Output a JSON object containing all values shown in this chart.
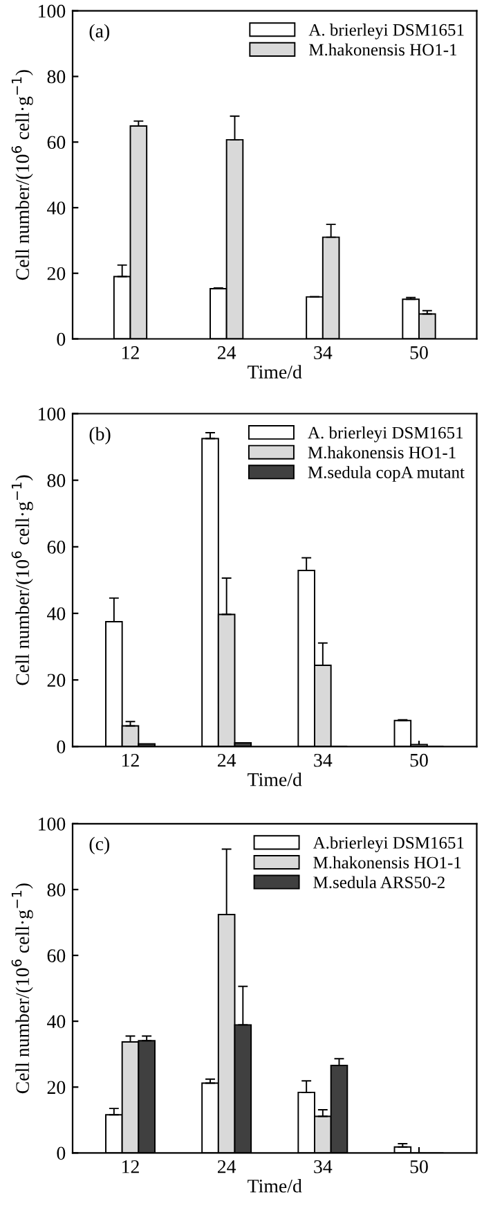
{
  "chart_data": [
    {
      "type": "bar",
      "annotations": [
        "(a)"
      ],
      "xlabel": "Time/d",
      "ylabel": "Cell number/(10$^{6}$ cell·g$^{−1}$)",
      "categories": [
        "12",
        "24",
        "34",
        "50"
      ],
      "ylim": [
        0,
        100
      ],
      "yticks": [
        0,
        20,
        40,
        60,
        80,
        100
      ],
      "legend": "top right",
      "series": [
        {
          "name": "A. brierleyi DSM1651",
          "color": "#ffffff",
          "values": [
            19,
            15.3,
            12.8,
            12.1
          ],
          "errors": [
            3.5,
            0.2,
            0.1,
            0.5
          ]
        },
        {
          "name": "M.hakonensis HO1-1",
          "color": "#d9d9d9",
          "values": [
            64.9,
            60.7,
            31,
            7.6
          ],
          "errors": [
            1.5,
            7.2,
            3.9,
            1.0
          ]
        }
      ]
    },
    {
      "type": "bar",
      "annotations": [
        "(b)"
      ],
      "xlabel": "Time/d",
      "ylabel": "Cell number/(10$^{6}$ cell·g$^{−1}$)",
      "categories": [
        "12",
        "24",
        "34",
        "50"
      ],
      "ylim": [
        0,
        100
      ],
      "yticks": [
        0,
        20,
        40,
        60,
        80,
        100
      ],
      "legend": "top right",
      "series": [
        {
          "name": "A. brierleyi DSM1651",
          "color": "#ffffff",
          "values": [
            37.5,
            92.5,
            52.9,
            7.8
          ],
          "errors": [
            7.1,
            1.8,
            3.8,
            0.2
          ]
        },
        {
          "name": "M.hakonensis HO1-1",
          "color": "#d9d9d9",
          "values": [
            6.2,
            39.7,
            24.4,
            0.6
          ],
          "errors": [
            1.3,
            10.9,
            6.7,
            null
          ]
        },
        {
          "name": "M.sedula copA mutant",
          "color": "#404040",
          "values": [
            0.8,
            1.1,
            null,
            null
          ],
          "errors": [
            null,
            null,
            null,
            null
          ]
        }
      ]
    },
    {
      "type": "bar",
      "annotations": [
        "(c)"
      ],
      "xlabel": "Time/d",
      "ylabel": "Cell number/(10$^{6}$ cell·g$^{−1}$)",
      "categories": [
        "12",
        "24",
        "34",
        "50"
      ],
      "ylim": [
        0,
        100
      ],
      "yticks": [
        0,
        20,
        40,
        60,
        80,
        100
      ],
      "legend": "top right",
      "series": [
        {
          "name": "A.brierleyi DSM1651",
          "color": "#ffffff",
          "values": [
            11.6,
            21.2,
            18.4,
            1.8
          ],
          "errors": [
            1.9,
            1.2,
            3.5,
            1.0
          ]
        },
        {
          "name": "M.hakonensis HO1-1",
          "color": "#d9d9d9",
          "values": [
            33.7,
            72.4,
            11.1,
            null
          ],
          "errors": [
            1.8,
            19.9,
            2.0,
            null
          ]
        },
        {
          "name": "M.sedula ARS50-2",
          "color": "#404040",
          "values": [
            34.1,
            38.9,
            26.6,
            null
          ],
          "errors": [
            1.4,
            11.7,
            2.0,
            null
          ]
        }
      ]
    }
  ]
}
